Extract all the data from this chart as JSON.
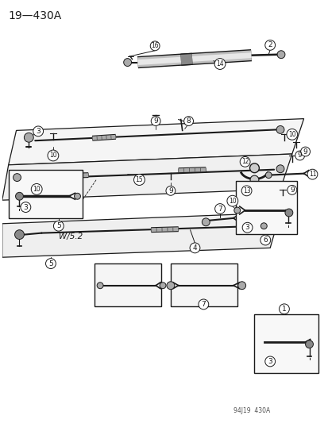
{
  "title": "19—430A",
  "footer": "94J19  430A",
  "bg_color": "#ffffff",
  "line_color": "#1a1a1a",
  "figsize": [
    4.14,
    5.33
  ],
  "dpi": 100,
  "title_fontsize": 10,
  "footer_fontsize": 5.5,
  "label_r": 6.5,
  "label_fontsize": 6.5
}
